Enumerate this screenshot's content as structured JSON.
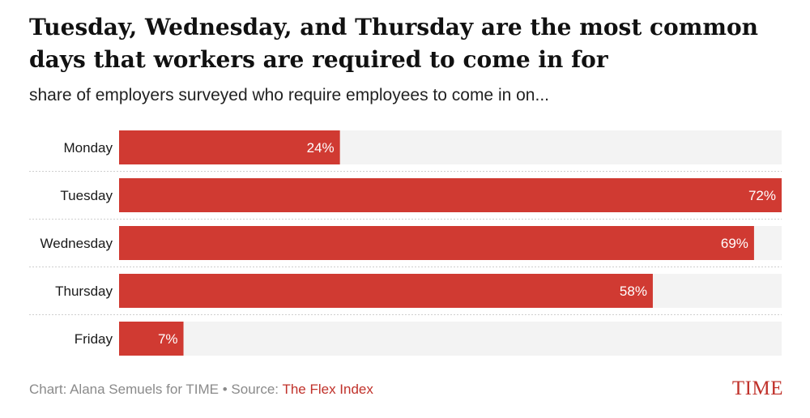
{
  "title": "Tuesday, Wednesday, and Thursday are the most common days that workers are required to come in for",
  "subtitle": "share of employers surveyed who require employees to come in on...",
  "chart_data": {
    "type": "bar",
    "orientation": "horizontal",
    "categories": [
      "Monday",
      "Tuesday",
      "Wednesday",
      "Thursday",
      "Friday"
    ],
    "values": [
      24,
      72,
      69,
      58,
      7
    ],
    "value_labels": [
      "24%",
      "72%",
      "69%",
      "58%",
      "7%"
    ],
    "xlim": [
      0,
      72
    ],
    "grid": false,
    "legend": "none",
    "bar_color": "#d03a32",
    "track_color": "#f3f3f3"
  },
  "footer": {
    "credit": "Chart: Alana Semuels for TIME",
    "separator": " • ",
    "source_prefix": "Source: ",
    "source_link": "The Flex Index"
  },
  "logo": "TIME"
}
